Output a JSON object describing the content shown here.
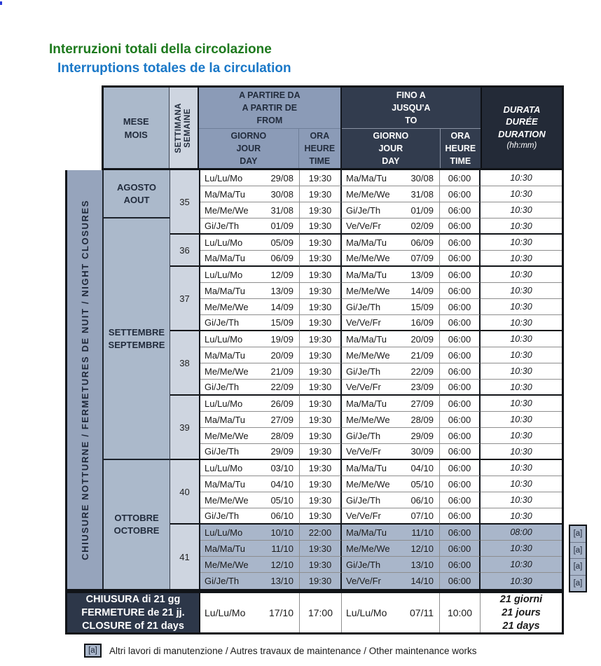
{
  "titles": {
    "it": "Interruzioni totali della circolazione",
    "fr": "Interruptions totales de la circulation"
  },
  "table_header": {
    "month": [
      "MESE",
      "MOIS"
    ],
    "week": [
      "SETTIMANA",
      "SEMAINE"
    ],
    "from_group": [
      "A PARTIRE DA",
      "A PARTIR DE",
      "FROM"
    ],
    "to_group": [
      "FINO A",
      "JUSQU'A",
      "TO"
    ],
    "day_sub": [
      "GIORNO",
      "JOUR",
      "DAY"
    ],
    "time_sub": [
      "ORA",
      "HEURE",
      "TIME"
    ],
    "duration": [
      "DURATA",
      "DURÉE",
      "DURATION",
      "(hh:mm)"
    ]
  },
  "side_label": "CHIUSURE NOTTURNE / FERMETURES DE NUIT / NIGHT CLOSURES",
  "months": [
    {
      "lines": [
        "AGOSTO",
        "AOUT"
      ],
      "row_start": 1,
      "row_end": 3
    },
    {
      "lines": [
        "SETTEMBRE",
        "SEPTEMBRE"
      ],
      "row_start": 4,
      "row_end": 18
    },
    {
      "lines": [
        "OTTOBRE",
        "OCTOBRE"
      ],
      "row_start": 19,
      "row_end": 26
    }
  ],
  "weeks": [
    {
      "label": "35",
      "row_start": 1,
      "row_end": 4
    },
    {
      "label": "36",
      "row_start": 5,
      "row_end": 6
    },
    {
      "label": "37",
      "row_start": 7,
      "row_end": 10
    },
    {
      "label": "38",
      "row_start": 11,
      "row_end": 14
    },
    {
      "label": "39",
      "row_start": 15,
      "row_end": 18
    },
    {
      "label": "40",
      "row_start": 19,
      "row_end": 22
    },
    {
      "label": "41",
      "row_start": 23,
      "row_end": 26
    }
  ],
  "rows": [
    {
      "from_day": "Lu/Lu/Mo",
      "from_date": "29/08",
      "from_time": "19:30",
      "to_day": "Ma/Ma/Tu",
      "to_date": "30/08",
      "to_time": "06:00",
      "duration": "10:30",
      "highlight": false,
      "note": ""
    },
    {
      "from_day": "Ma/Ma/Tu",
      "from_date": "30/08",
      "from_time": "19:30",
      "to_day": "Me/Me/We",
      "to_date": "31/08",
      "to_time": "06:00",
      "duration": "10:30",
      "highlight": false,
      "note": ""
    },
    {
      "from_day": "Me/Me/We",
      "from_date": "31/08",
      "from_time": "19:30",
      "to_day": "Gi/Je/Th",
      "to_date": "01/09",
      "to_time": "06:00",
      "duration": "10:30",
      "highlight": false,
      "note": ""
    },
    {
      "from_day": "Gi/Je/Th",
      "from_date": "01/09",
      "from_time": "19:30",
      "to_day": "Ve/Ve/Fr",
      "to_date": "02/09",
      "to_time": "06:00",
      "duration": "10:30",
      "highlight": false,
      "note": ""
    },
    {
      "from_day": "Lu/Lu/Mo",
      "from_date": "05/09",
      "from_time": "19:30",
      "to_day": "Ma/Ma/Tu",
      "to_date": "06/09",
      "to_time": "06:00",
      "duration": "10:30",
      "highlight": false,
      "note": ""
    },
    {
      "from_day": "Ma/Ma/Tu",
      "from_date": "06/09",
      "from_time": "19:30",
      "to_day": "Me/Me/We",
      "to_date": "07/09",
      "to_time": "06:00",
      "duration": "10:30",
      "highlight": false,
      "note": ""
    },
    {
      "from_day": "Lu/Lu/Mo",
      "from_date": "12/09",
      "from_time": "19:30",
      "to_day": "Ma/Ma/Tu",
      "to_date": "13/09",
      "to_time": "06:00",
      "duration": "10:30",
      "highlight": false,
      "note": ""
    },
    {
      "from_day": "Ma/Ma/Tu",
      "from_date": "13/09",
      "from_time": "19:30",
      "to_day": "Me/Me/We",
      "to_date": "14/09",
      "to_time": "06:00",
      "duration": "10:30",
      "highlight": false,
      "note": ""
    },
    {
      "from_day": "Me/Me/We",
      "from_date": "14/09",
      "from_time": "19:30",
      "to_day": "Gi/Je/Th",
      "to_date": "15/09",
      "to_time": "06:00",
      "duration": "10:30",
      "highlight": false,
      "note": ""
    },
    {
      "from_day": "Gi/Je/Th",
      "from_date": "15/09",
      "from_time": "19:30",
      "to_day": "Ve/Ve/Fr",
      "to_date": "16/09",
      "to_time": "06:00",
      "duration": "10:30",
      "highlight": false,
      "note": ""
    },
    {
      "from_day": "Lu/Lu/Mo",
      "from_date": "19/09",
      "from_time": "19:30",
      "to_day": "Ma/Ma/Tu",
      "to_date": "20/09",
      "to_time": "06:00",
      "duration": "10:30",
      "highlight": false,
      "note": ""
    },
    {
      "from_day": "Ma/Ma/Tu",
      "from_date": "20/09",
      "from_time": "19:30",
      "to_day": "Me/Me/We",
      "to_date": "21/09",
      "to_time": "06:00",
      "duration": "10:30",
      "highlight": false,
      "note": ""
    },
    {
      "from_day": "Me/Me/We",
      "from_date": "21/09",
      "from_time": "19:30",
      "to_day": "Gi/Je/Th",
      "to_date": "22/09",
      "to_time": "06:00",
      "duration": "10:30",
      "highlight": false,
      "note": ""
    },
    {
      "from_day": "Gi/Je/Th",
      "from_date": "22/09",
      "from_time": "19:30",
      "to_day": "Ve/Ve/Fr",
      "to_date": "23/09",
      "to_time": "06:00",
      "duration": "10:30",
      "highlight": false,
      "note": ""
    },
    {
      "from_day": "Lu/Lu/Mo",
      "from_date": "26/09",
      "from_time": "19:30",
      "to_day": "Ma/Ma/Tu",
      "to_date": "27/09",
      "to_time": "06:00",
      "duration": "10:30",
      "highlight": false,
      "note": ""
    },
    {
      "from_day": "Ma/Ma/Tu",
      "from_date": "27/09",
      "from_time": "19:30",
      "to_day": "Me/Me/We",
      "to_date": "28/09",
      "to_time": "06:00",
      "duration": "10:30",
      "highlight": false,
      "note": ""
    },
    {
      "from_day": "Me/Me/We",
      "from_date": "28/09",
      "from_time": "19:30",
      "to_day": "Gi/Je/Th",
      "to_date": "29/09",
      "to_time": "06:00",
      "duration": "10:30",
      "highlight": false,
      "note": ""
    },
    {
      "from_day": "Gi/Je/Th",
      "from_date": "29/09",
      "from_time": "19:30",
      "to_day": "Ve/Ve/Fr",
      "to_date": "30/09",
      "to_time": "06:00",
      "duration": "10:30",
      "highlight": false,
      "note": ""
    },
    {
      "from_day": "Lu/Lu/Mo",
      "from_date": "03/10",
      "from_time": "19:30",
      "to_day": "Ma/Ma/Tu",
      "to_date": "04/10",
      "to_time": "06:00",
      "duration": "10:30",
      "highlight": false,
      "note": ""
    },
    {
      "from_day": "Ma/Ma/Tu",
      "from_date": "04/10",
      "from_time": "19:30",
      "to_day": "Me/Me/We",
      "to_date": "05/10",
      "to_time": "06:00",
      "duration": "10:30",
      "highlight": false,
      "note": ""
    },
    {
      "from_day": "Me/Me/We",
      "from_date": "05/10",
      "from_time": "19:30",
      "to_day": "Gi/Je/Th",
      "to_date": "06/10",
      "to_time": "06:00",
      "duration": "10:30",
      "highlight": false,
      "note": ""
    },
    {
      "from_day": "Gi/Je/Th",
      "from_date": "06/10",
      "from_time": "19:30",
      "to_day": "Ve/Ve/Fr",
      "to_date": "07/10",
      "to_time": "06:00",
      "duration": "10:30",
      "highlight": false,
      "note": ""
    },
    {
      "from_day": "Lu/Lu/Mo",
      "from_date": "10/10",
      "from_time": "22:00",
      "to_day": "Ma/Ma/Tu",
      "to_date": "11/10",
      "to_time": "06:00",
      "duration": "08:00",
      "highlight": true,
      "note": "[a]"
    },
    {
      "from_day": "Ma/Ma/Tu",
      "from_date": "11/10",
      "from_time": "19:30",
      "to_day": "Me/Me/We",
      "to_date": "12/10",
      "to_time": "06:00",
      "duration": "10:30",
      "highlight": true,
      "note": "[a]"
    },
    {
      "from_day": "Me/Me/We",
      "from_date": "12/10",
      "from_time": "19:30",
      "to_day": "Gi/Je/Th",
      "to_date": "13/10",
      "to_time": "06:00",
      "duration": "10:30",
      "highlight": true,
      "note": "[a]"
    },
    {
      "from_day": "Gi/Je/Th",
      "from_date": "13/10",
      "from_time": "19:30",
      "to_day": "Ve/Ve/Fr",
      "to_date": "14/10",
      "to_time": "06:00",
      "duration": "10:30",
      "highlight": true,
      "note": "[a]"
    }
  ],
  "closure": {
    "label_lines": [
      "CHIUSURA di 21 gg",
      "FERMETURE de 21 jj.",
      "CLOSURE of 21 days"
    ],
    "from_day": "Lu/Lu/Mo",
    "from_date": "17/10",
    "from_time": "17:00",
    "to_day": "Lu/Lu/Mo",
    "to_date": "07/11",
    "to_time": "10:00",
    "duration_lines": [
      "21 giorni",
      "21 jours",
      "21 days"
    ]
  },
  "footnote": {
    "marker": "[a]",
    "text": "Altri lavori di manutenzione / Autres travaux de maintenance / Other maintenance works"
  },
  "colors": {
    "title_it": "#1e7a1e",
    "title_fr": "#1a78c8",
    "month_cell": "#abb9cb",
    "week_column": "#ced5e0",
    "from_header": "#8b9bb7",
    "to_header": "#323c4e",
    "duration_header": "#232a37",
    "side_band": "#96a4bc",
    "highlight_row": "#a9b6ca",
    "closure_label": "#2d3749"
  }
}
